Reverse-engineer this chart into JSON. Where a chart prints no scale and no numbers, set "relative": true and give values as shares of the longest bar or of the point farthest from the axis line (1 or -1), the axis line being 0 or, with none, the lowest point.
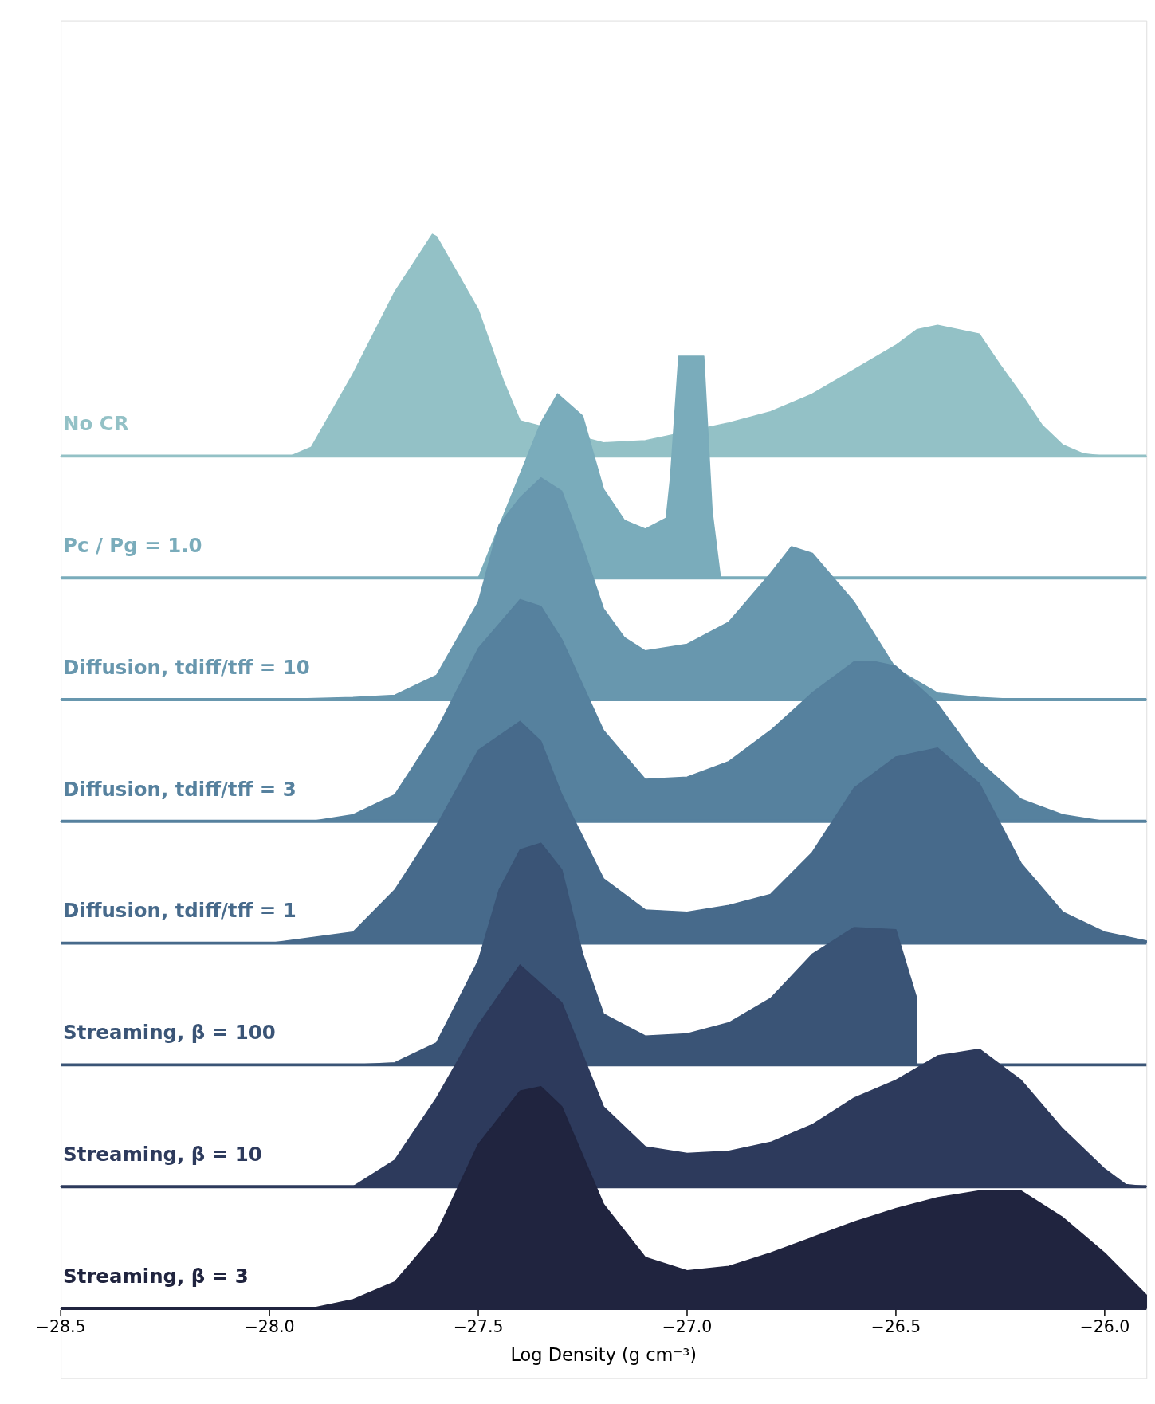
{
  "chart_data": [
    {
      "type": "area",
      "relative": true,
      "xlim": [
        -28.5,
        -25.9
      ],
      "tick_labels": false,
      "series": [
        {
          "name": "No CR",
          "color": "#93c1c6",
          "x": [
            -28.5,
            -27.95,
            -27.9,
            -27.8,
            -27.7,
            -27.61,
            -27.6,
            -27.5,
            -27.44,
            -27.4,
            -27.2,
            -27.1,
            -26.9,
            -26.8,
            -26.7,
            -26.6,
            -26.5,
            -26.45,
            -26.4,
            -26.3,
            -26.25,
            -26.2,
            -26.15,
            -26.1,
            -26.05,
            -26.0,
            -25.9
          ],
          "values": [
            0,
            0,
            0.04,
            0.37,
            0.74,
            1.0,
            0.99,
            0.66,
            0.34,
            0.16,
            0.06,
            0.07,
            0.15,
            0.2,
            0.28,
            0.39,
            0.5,
            0.57,
            0.59,
            0.55,
            0.41,
            0.28,
            0.14,
            0.05,
            0.01,
            0,
            0
          ]
        }
      ]
    },
    {
      "type": "area",
      "relative": true,
      "xlim": [
        -28.5,
        -25.9
      ],
      "tick_labels": false,
      "series": [
        {
          "name": "Pc / Pg = 1.0",
          "color": "#7aacbb",
          "x": [
            -28.5,
            -27.5,
            -27.4,
            -27.35,
            -27.31,
            -27.25,
            -27.2,
            -27.15,
            -27.1,
            -27.05,
            -27.04,
            -27.02,
            -26.96,
            -26.94,
            -26.92,
            -25.9
          ],
          "values": [
            0,
            0,
            null,
            0.7,
            0.83,
            0.73,
            0.4,
            0.26,
            0.22,
            0.27,
            0.45,
            1.0,
            1.0,
            0.3,
            0,
            0
          ]
        }
      ]
    },
    {
      "type": "area",
      "relative": true,
      "xlim": [
        -28.5,
        -25.9
      ],
      "tick_labels": false,
      "series": [
        {
          "name": "Diffusion, tdiff/tff = 10",
          "color": "#6897ae",
          "x": [
            -28.5,
            -28.0,
            -27.8,
            -27.7,
            -27.6,
            -27.5,
            -27.45,
            -27.4,
            -27.35,
            -27.3,
            -27.25,
            -27.2,
            -27.15,
            -27.1,
            -27.0,
            -26.9,
            -26.8,
            -26.75,
            -26.7,
            -26.6,
            -26.5,
            -26.4,
            -26.3,
            -26.2,
            -25.9
          ],
          "values": [
            0,
            0,
            0.01,
            0.02,
            0.11,
            0.44,
            0.79,
            0.91,
            1.0,
            0.94,
            0.69,
            0.41,
            0.28,
            0.22,
            0.25,
            0.35,
            0.57,
            0.69,
            0.66,
            0.44,
            0.14,
            0.03,
            0.01,
            0,
            0
          ]
        }
      ]
    },
    {
      "type": "area",
      "relative": true,
      "xlim": [
        -28.5,
        -25.9
      ],
      "tick_labels": false,
      "series": [
        {
          "name": "Diffusion, tdiff/tff = 3",
          "color": "#56819e",
          "x": [
            -28.5,
            -27.9,
            -27.8,
            -27.7,
            -27.6,
            -27.5,
            -27.4,
            -27.35,
            -27.3,
            -27.2,
            -27.1,
            -27.0,
            -26.9,
            -26.8,
            -26.7,
            -26.6,
            -26.55,
            -26.5,
            -26.4,
            -26.3,
            -26.2,
            -26.1,
            -26.0,
            -25.9
          ],
          "values": [
            0,
            0,
            0.03,
            0.12,
            0.41,
            0.78,
            1.0,
            0.97,
            0.82,
            0.41,
            0.19,
            0.2,
            0.27,
            0.41,
            0.58,
            0.72,
            0.72,
            0.7,
            0.53,
            0.27,
            0.1,
            0.03,
            0,
            0
          ]
        }
      ]
    },
    {
      "type": "area",
      "relative": true,
      "xlim": [
        -28.5,
        -25.9
      ],
      "tick_labels": false,
      "series": [
        {
          "name": "Diffusion, tdiff/tff = 1",
          "color": "#476a8b",
          "x": [
            -28.5,
            -28.0,
            -27.8,
            -27.7,
            -27.6,
            -27.5,
            -27.4,
            -27.35,
            -27.3,
            -27.2,
            -27.1,
            -27.0,
            -26.9,
            -26.8,
            -26.7,
            -26.6,
            -26.5,
            -26.4,
            -26.3,
            -26.2,
            -26.1,
            -26.0,
            -25.9
          ],
          "values": [
            0,
            0,
            0.05,
            0.24,
            0.53,
            0.87,
            1.0,
            0.91,
            0.67,
            0.29,
            0.15,
            0.14,
            0.17,
            0.22,
            0.41,
            0.7,
            0.84,
            0.88,
            0.72,
            0.36,
            0.14,
            0.05,
            0.01
          ]
        }
      ]
    },
    {
      "type": "area",
      "relative": true,
      "xlim": [
        -28.5,
        -25.9
      ],
      "tick_labels": false,
      "series": [
        {
          "name": "Streaming, β = 100",
          "color": "#3a5476",
          "x": [
            -28.5,
            -27.8,
            -27.7,
            -27.6,
            -27.5,
            -27.45,
            -27.4,
            -27.35,
            -27.3,
            -27.25,
            -27.2,
            -27.1,
            -27.0,
            -26.9,
            -26.8,
            -26.7,
            -26.6,
            -26.5,
            -26.45
          ],
          "values": [
            0,
            0,
            0.01,
            0.1,
            0.47,
            0.79,
            0.97,
            1.0,
            0.88,
            0.5,
            0.23,
            0.13,
            0.14,
            0.19,
            0.3,
            0.5,
            0.62,
            0.61,
            0.3
          ]
        }
      ]
    },
    {
      "type": "area",
      "relative": true,
      "xlim": [
        -28.5,
        -25.9
      ],
      "tick_labels": false,
      "series": [
        {
          "name": "Streaming, β = 10",
          "color": "#2d3a5c",
          "x": [
            -28.5,
            -27.8,
            -27.7,
            -27.6,
            -27.5,
            -27.4,
            -27.3,
            -27.2,
            -27.1,
            -27.0,
            -26.9,
            -26.8,
            -26.7,
            -26.6,
            -26.5,
            -26.4,
            -26.3,
            -26.2,
            -26.1,
            -26.0,
            -25.95,
            -25.9
          ],
          "values": [
            0,
            0,
            0.12,
            0.4,
            0.73,
            1.0,
            0.83,
            0.36,
            0.18,
            0.15,
            0.16,
            0.2,
            0.28,
            0.4,
            0.48,
            0.59,
            0.62,
            0.48,
            0.26,
            0.08,
            0.01,
            0
          ]
        }
      ]
    },
    {
      "type": "area",
      "relative": true,
      "xlim": [
        -28.5,
        -25.9
      ],
      "xticks": [
        -28.5,
        {
          "value": -28.0,
          "label": "−28.0"
        },
        -27.5,
        {
          "value": -27.0,
          "label": "−27.0"
        },
        -26.5,
        {
          "value": -26.0,
          "label": "−26.0"
        }
      ],
      "xlabel": "Log Density (g cm⁻³)",
      "series": [
        {
          "name": "Streaming, β = 3",
          "color": "#20243f",
          "x": [
            -28.5,
            -27.9,
            -27.8,
            -27.7,
            -27.6,
            -27.5,
            -27.4,
            -27.35,
            -27.3,
            -27.2,
            -27.1,
            -27.0,
            -26.9,
            -26.8,
            -26.7,
            -26.6,
            -26.5,
            -26.4,
            -26.3,
            -26.2,
            -26.1,
            -26.0,
            -25.9
          ],
          "values": [
            0,
            0,
            0.04,
            0.12,
            0.34,
            0.74,
            0.98,
            1.0,
            0.91,
            0.47,
            0.23,
            0.17,
            0.19,
            0.25,
            0.32,
            0.39,
            0.45,
            0.5,
            0.53,
            0.53,
            0.41,
            0.25,
            0.06
          ]
        }
      ]
    }
  ]
}
